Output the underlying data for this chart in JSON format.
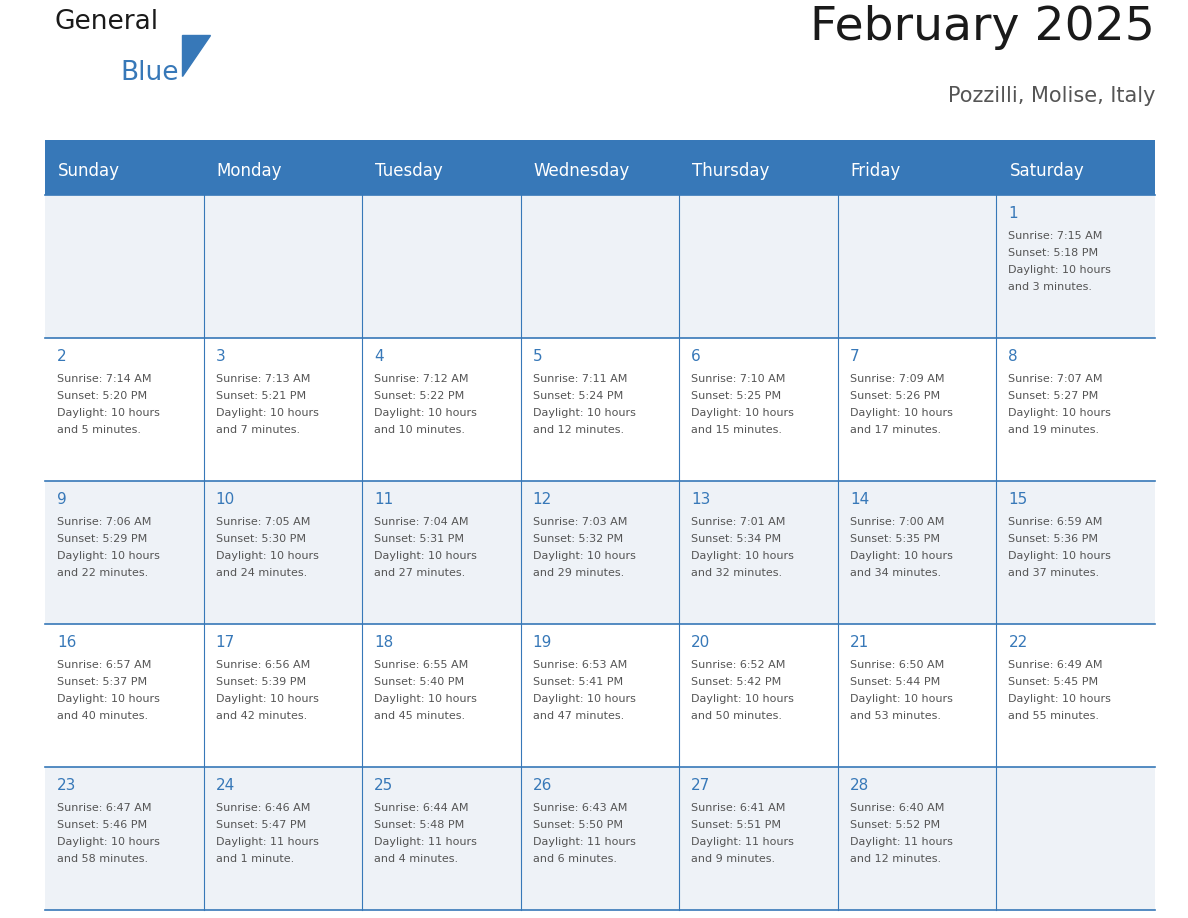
{
  "title": "February 2025",
  "subtitle": "Pozzilli, Molise, Italy",
  "days_of_week": [
    "Sunday",
    "Monday",
    "Tuesday",
    "Wednesday",
    "Thursday",
    "Friday",
    "Saturday"
  ],
  "header_bg_color": "#3778b8",
  "header_text_color": "#ffffff",
  "cell_bg_even": "#eef2f7",
  "cell_bg_odd": "#ffffff",
  "day_number_color": "#3778b8",
  "text_color": "#555555",
  "border_color": "#3778b8",
  "line_color": "#3778b8",
  "calendar_data": [
    [
      null,
      null,
      null,
      null,
      null,
      null,
      {
        "day": 1,
        "sunrise": "7:15 AM",
        "sunset": "5:18 PM",
        "daylight": "10 hours and 3 minutes."
      }
    ],
    [
      {
        "day": 2,
        "sunrise": "7:14 AM",
        "sunset": "5:20 PM",
        "daylight": "10 hours and 5 minutes."
      },
      {
        "day": 3,
        "sunrise": "7:13 AM",
        "sunset": "5:21 PM",
        "daylight": "10 hours and 7 minutes."
      },
      {
        "day": 4,
        "sunrise": "7:12 AM",
        "sunset": "5:22 PM",
        "daylight": "10 hours and 10 minutes."
      },
      {
        "day": 5,
        "sunrise": "7:11 AM",
        "sunset": "5:24 PM",
        "daylight": "10 hours and 12 minutes."
      },
      {
        "day": 6,
        "sunrise": "7:10 AM",
        "sunset": "5:25 PM",
        "daylight": "10 hours and 15 minutes."
      },
      {
        "day": 7,
        "sunrise": "7:09 AM",
        "sunset": "5:26 PM",
        "daylight": "10 hours and 17 minutes."
      },
      {
        "day": 8,
        "sunrise": "7:07 AM",
        "sunset": "5:27 PM",
        "daylight": "10 hours and 19 minutes."
      }
    ],
    [
      {
        "day": 9,
        "sunrise": "7:06 AM",
        "sunset": "5:29 PM",
        "daylight": "10 hours and 22 minutes."
      },
      {
        "day": 10,
        "sunrise": "7:05 AM",
        "sunset": "5:30 PM",
        "daylight": "10 hours and 24 minutes."
      },
      {
        "day": 11,
        "sunrise": "7:04 AM",
        "sunset": "5:31 PM",
        "daylight": "10 hours and 27 minutes."
      },
      {
        "day": 12,
        "sunrise": "7:03 AM",
        "sunset": "5:32 PM",
        "daylight": "10 hours and 29 minutes."
      },
      {
        "day": 13,
        "sunrise": "7:01 AM",
        "sunset": "5:34 PM",
        "daylight": "10 hours and 32 minutes."
      },
      {
        "day": 14,
        "sunrise": "7:00 AM",
        "sunset": "5:35 PM",
        "daylight": "10 hours and 34 minutes."
      },
      {
        "day": 15,
        "sunrise": "6:59 AM",
        "sunset": "5:36 PM",
        "daylight": "10 hours and 37 minutes."
      }
    ],
    [
      {
        "day": 16,
        "sunrise": "6:57 AM",
        "sunset": "5:37 PM",
        "daylight": "10 hours and 40 minutes."
      },
      {
        "day": 17,
        "sunrise": "6:56 AM",
        "sunset": "5:39 PM",
        "daylight": "10 hours and 42 minutes."
      },
      {
        "day": 18,
        "sunrise": "6:55 AM",
        "sunset": "5:40 PM",
        "daylight": "10 hours and 45 minutes."
      },
      {
        "day": 19,
        "sunrise": "6:53 AM",
        "sunset": "5:41 PM",
        "daylight": "10 hours and 47 minutes."
      },
      {
        "day": 20,
        "sunrise": "6:52 AM",
        "sunset": "5:42 PM",
        "daylight": "10 hours and 50 minutes."
      },
      {
        "day": 21,
        "sunrise": "6:50 AM",
        "sunset": "5:44 PM",
        "daylight": "10 hours and 53 minutes."
      },
      {
        "day": 22,
        "sunrise": "6:49 AM",
        "sunset": "5:45 PM",
        "daylight": "10 hours and 55 minutes."
      }
    ],
    [
      {
        "day": 23,
        "sunrise": "6:47 AM",
        "sunset": "5:46 PM",
        "daylight": "10 hours and 58 minutes."
      },
      {
        "day": 24,
        "sunrise": "6:46 AM",
        "sunset": "5:47 PM",
        "daylight": "11 hours and 1 minute."
      },
      {
        "day": 25,
        "sunrise": "6:44 AM",
        "sunset": "5:48 PM",
        "daylight": "11 hours and 4 minutes."
      },
      {
        "day": 26,
        "sunrise": "6:43 AM",
        "sunset": "5:50 PM",
        "daylight": "11 hours and 6 minutes."
      },
      {
        "day": 27,
        "sunrise": "6:41 AM",
        "sunset": "5:51 PM",
        "daylight": "11 hours and 9 minutes."
      },
      {
        "day": 28,
        "sunrise": "6:40 AM",
        "sunset": "5:52 PM",
        "daylight": "11 hours and 12 minutes."
      },
      null
    ]
  ],
  "title_fontsize": 34,
  "subtitle_fontsize": 15,
  "header_fontsize": 12,
  "day_num_fontsize": 11,
  "cell_text_fontsize": 8
}
